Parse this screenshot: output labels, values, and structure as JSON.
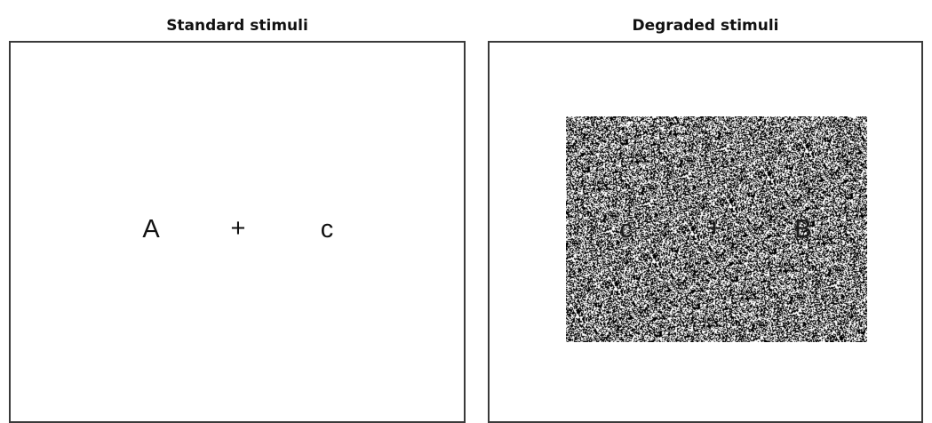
{
  "standard": {
    "title": "Standard stimuli",
    "left_letter": "A",
    "fixation": "+",
    "right_letter": "c"
  },
  "degraded": {
    "title": "Degraded stimuli",
    "left_letter": "c",
    "fixation": "+",
    "right_letter": "B",
    "noise_level": 0.5
  },
  "colors": {
    "frame": "#3a3a3a",
    "text": "#111111"
  }
}
